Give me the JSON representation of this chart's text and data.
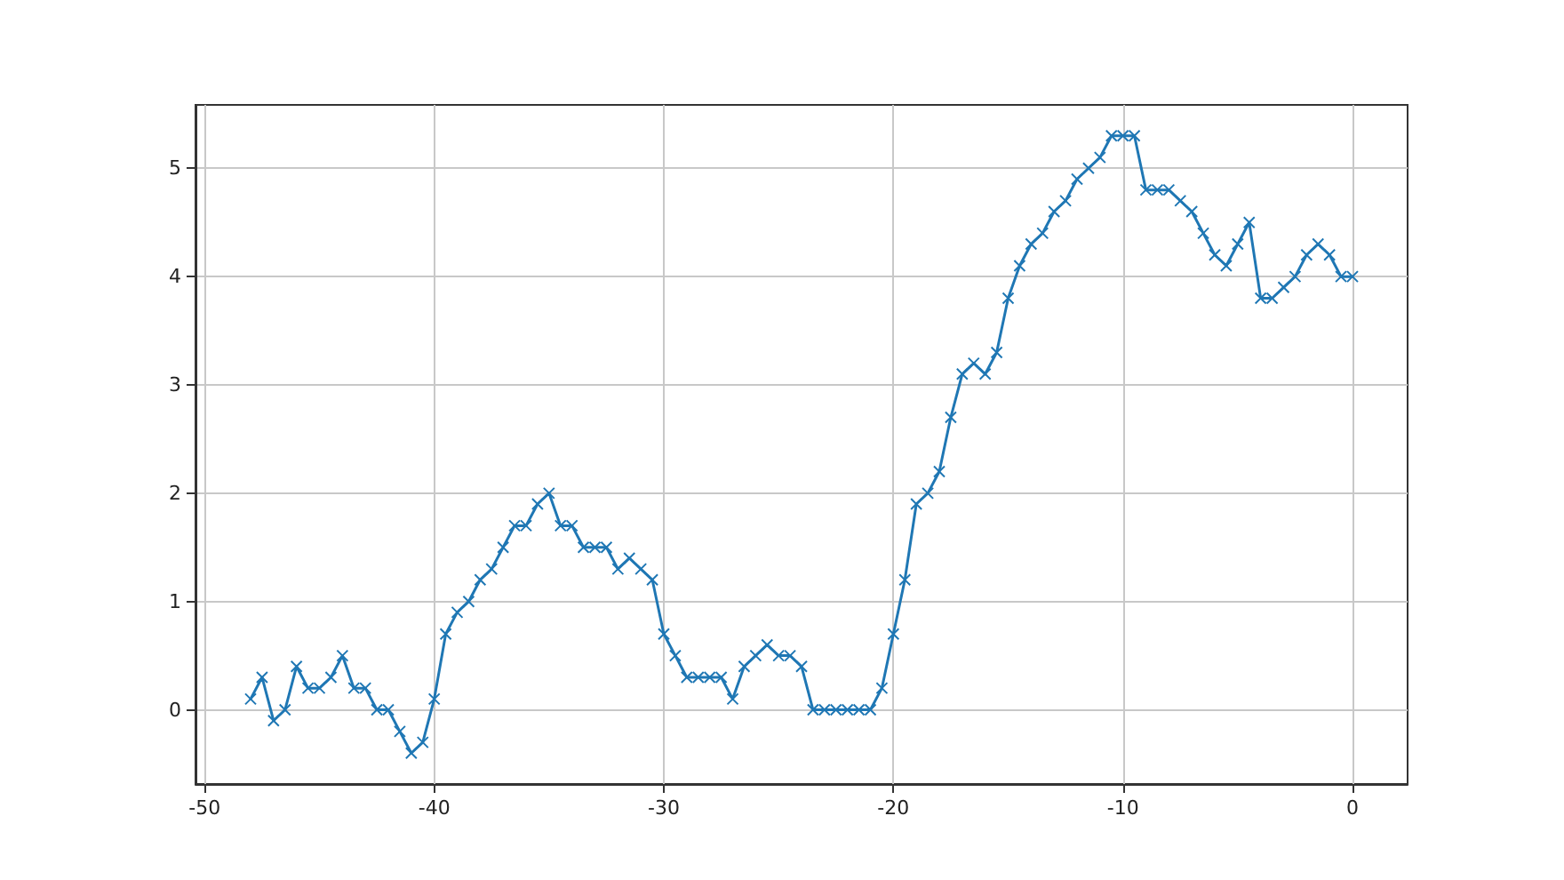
{
  "chart_data": {
    "type": "line",
    "x": [
      -48,
      -47.5,
      -47,
      -46.5,
      -46,
      -45.5,
      -45,
      -44.5,
      -44,
      -43.5,
      -43,
      -42.5,
      -42,
      -41.5,
      -41,
      -40.5,
      -40,
      -39.5,
      -39,
      -38.5,
      -38,
      -37.5,
      -37,
      -36.5,
      -36,
      -35.5,
      -35,
      -34.5,
      -34,
      -33.5,
      -33,
      -32.5,
      -32,
      -31.5,
      -31,
      -30.5,
      -30,
      -29.5,
      -29,
      -28.5,
      -28,
      -27.5,
      -27,
      -26.5,
      -26,
      -25.5,
      -25,
      -24.5,
      -24,
      -23.5,
      -23,
      -22.5,
      -22,
      -21.5,
      -21,
      -20.5,
      -20,
      -19.5,
      -19,
      -18.5,
      -18,
      -17.5,
      -17,
      -16.5,
      -16,
      -15.5,
      -15,
      -14.5,
      -14,
      -13.5,
      -13,
      -12.5,
      -12,
      -11.5,
      -11,
      -10.5,
      -10,
      -9.5,
      -9,
      -8.5,
      -8,
      -7.5,
      -7,
      -6.5,
      -6,
      -5.5,
      -5,
      -4.5,
      -4,
      -3.5,
      -3,
      -2.5,
      -2,
      -1.5,
      -1,
      -0.5,
      0
    ],
    "series": [
      {
        "color": "#1f77b4",
        "values": [
          0.1,
          0.3,
          -0.1,
          0.0,
          0.4,
          0.2,
          0.2,
          0.3,
          0.5,
          0.2,
          0.2,
          0.0,
          0.0,
          -0.2,
          -0.4,
          -0.3,
          0.1,
          0.7,
          0.9,
          1.0,
          1.2,
          1.3,
          1.5,
          1.7,
          1.7,
          1.9,
          2.0,
          1.7,
          1.7,
          1.5,
          1.5,
          1.5,
          1.3,
          1.4,
          1.3,
          1.2,
          0.7,
          0.5,
          0.3,
          0.3,
          0.3,
          0.3,
          0.1,
          0.4,
          0.5,
          0.6,
          0.5,
          0.5,
          0.4,
          0,
          0,
          0,
          0,
          0,
          0,
          0.2,
          0.7,
          1.2,
          1.9,
          2.0,
          2.2,
          2.7,
          3.1,
          3.2,
          3.1,
          3.3,
          3.8,
          4.1,
          4.3,
          4.4,
          4.6,
          4.7,
          4.9,
          5.0,
          5.1,
          5.3,
          5.3,
          5.3,
          4.8,
          4.8,
          4.8,
          4.7,
          4.6,
          4.4,
          4.2,
          4.1,
          4.3,
          4.5,
          3.8,
          3.8,
          3.9,
          4.0,
          4.2,
          4.3,
          4.2,
          4.0,
          4.0
        ]
      }
    ],
    "xlim": [
      -50.4,
      2.4
    ],
    "xticks": [
      -50,
      -40,
      -30,
      -20,
      -10,
      0
    ],
    "ylim": [
      -0.685,
      5.585
    ],
    "yticks": [
      0,
      1,
      2,
      3,
      4,
      5
    ],
    "grid": true,
    "marker": "cross",
    "line_style": "solid"
  }
}
